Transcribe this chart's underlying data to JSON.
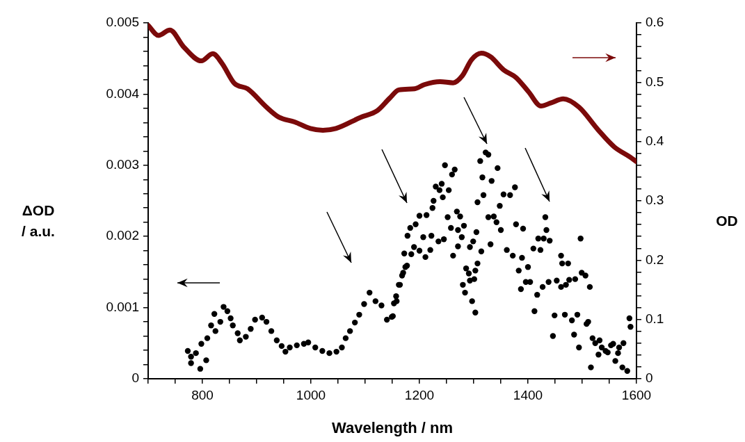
{
  "chart_data": {
    "type": "scatter",
    "xlabel": "Wavelength / nm",
    "ylabel": "ΔOD / a.u.",
    "y2label": "OD",
    "xlim": [
      700,
      1600
    ],
    "xticks": [
      {
        "value": 700,
        "label": null
      },
      {
        "value": 750,
        "label": null
      },
      800,
      {
        "value": 850,
        "label": null
      },
      {
        "value": 900,
        "label": null
      },
      {
        "value": 950,
        "label": null
      },
      1000,
      {
        "value": 1050,
        "label": null
      },
      {
        "value": 1100,
        "label": null
      },
      {
        "value": 1150,
        "label": null
      },
      1200,
      {
        "value": 1250,
        "label": null
      },
      {
        "value": 1300,
        "label": null
      },
      {
        "value": 1350,
        "label": null
      },
      1400,
      {
        "value": 1450,
        "label": null
      },
      {
        "value": 1500,
        "label": null
      },
      {
        "value": 1550,
        "label": null
      },
      1600
    ],
    "ylim": [
      0,
      0.005
    ],
    "yticks": [
      0,
      {
        "value": 0.0002,
        "label": null
      },
      {
        "value": 0.0004,
        "label": null
      },
      {
        "value": 0.0006,
        "label": null
      },
      {
        "value": 0.0008,
        "label": null
      },
      0.001,
      {
        "value": 0.0012,
        "label": null
      },
      {
        "value": 0.0014,
        "label": null
      },
      {
        "value": 0.0016,
        "label": null
      },
      {
        "value": 0.0018,
        "label": null
      },
      0.002,
      {
        "value": 0.0022,
        "label": null
      },
      {
        "value": 0.0024,
        "label": null
      },
      {
        "value": 0.0026,
        "label": null
      },
      {
        "value": 0.0028,
        "label": null
      },
      0.003,
      {
        "value": 0.0032,
        "label": null
      },
      {
        "value": 0.0034,
        "label": null
      },
      {
        "value": 0.0036,
        "label": null
      },
      {
        "value": 0.0038,
        "label": null
      },
      0.004,
      {
        "value": 0.0042,
        "label": null
      },
      {
        "value": 0.0044,
        "label": null
      },
      {
        "value": 0.0046,
        "label": null
      },
      {
        "value": 0.0048,
        "label": null
      },
      0.005
    ],
    "y2lim": [
      0,
      0.6
    ],
    "y2ticks": [
      0,
      {
        "value": 0.02,
        "label": null
      },
      {
        "value": 0.04,
        "label": null
      },
      {
        "value": 0.06,
        "label": null
      },
      {
        "value": 0.08,
        "label": null
      },
      0.1,
      {
        "value": 0.12,
        "label": null
      },
      {
        "value": 0.14,
        "label": null
      },
      {
        "value": 0.16,
        "label": null
      },
      {
        "value": 0.18,
        "label": null
      },
      0.2,
      {
        "value": 0.22,
        "label": null
      },
      {
        "value": 0.24,
        "label": null
      },
      {
        "value": 0.26,
        "label": null
      },
      {
        "value": 0.28,
        "label": null
      },
      0.3,
      {
        "value": 0.32,
        "label": null
      },
      {
        "value": 0.34,
        "label": null
      },
      {
        "value": 0.36,
        "label": null
      },
      {
        "value": 0.38,
        "label": null
      },
      0.4,
      {
        "value": 0.42,
        "label": null
      },
      {
        "value": 0.44,
        "label": null
      },
      {
        "value": 0.46,
        "label": null
      },
      {
        "value": 0.48,
        "label": null
      },
      0.5,
      {
        "value": 0.52,
        "label": null
      },
      {
        "value": 0.54,
        "label": null
      },
      {
        "value": 0.56,
        "label": null
      },
      {
        "value": 0.58,
        "label": null
      },
      0.6
    ],
    "grid": false,
    "legend": false,
    "series": [
      {
        "type": "scatter",
        "color": "#000000",
        "marker": "circle",
        "x": [
          773,
          779,
          779,
          796,
          788,
          798,
          809,
          807,
          816,
          824,
          822,
          833,
          839,
          846,
          852,
          856,
          865,
          869,
          880,
          889,
          897,
          910,
          918,
          927,
          937,
          946,
          953,
          961,
          974,
          987,
          995,
          1008,
          1021,
          1034,
          1047,
          1057,
          1064,
          1072,
          1081,
          1089,
          1098,
          1108,
          1119,
          1130,
          1140,
          1151,
          1158,
          1162,
          1170,
          1177,
          1149,
          1153,
          1157,
          1164,
          1168,
          1174,
          1172,
          1185,
          1178,
          1183,
          1190,
          1193,
          1200,
          1200,
          1207,
          1211,
          1213,
          1220,
          1222,
          1224,
          1226,
          1230,
          1235,
          1237,
          1241,
          1243,
          1245,
          1247,
          1252,
          1254,
          1258,
          1260,
          1265,
          1262,
          1269,
          1271,
          1271,
          1275,
          1278,
          1280,
          1282,
          1284,
          1286,
          1291,
          1293,
          1293,
          1297,
          1299,
          1301,
          1303,
          1305,
          1303,
          1307,
          1307,
          1312,
          1314,
          1316,
          1318,
          1322,
          1327,
          1327,
          1331,
          1333,
          1337,
          1342,
          1344,
          1348,
          1350,
          1355,
          1361,
          1367,
          1372,
          1376,
          1378,
          1383,
          1387,
          1389,
          1391,
          1396,
          1400,
          1404,
          1410,
          1412,
          1417,
          1419,
          1423,
          1427,
          1429,
          1432,
          1434,
          1438,
          1440,
          1446,
          1449,
          1453,
          1461,
          1461,
          1463,
          1468,
          1470,
          1474,
          1476,
          1481,
          1485,
          1487,
          1491,
          1494,
          1497,
          1499,
          1506,
          1508,
          1511,
          1514,
          1516,
          1519,
          1524,
          1530,
          1532,
          1536,
          1543,
          1547,
          1553,
          1557,
          1561,
          1566,
          1568,
          1574,
          1576,
          1583,
          1587,
          1589
        ],
        "values": [
          0.00039,
          0.00031,
          0.00022,
          0.00014,
          0.00036,
          0.00049,
          0.00057,
          0.00026,
          0.00075,
          0.00067,
          0.00091,
          0.0008,
          0.00101,
          0.00095,
          0.00085,
          0.00075,
          0.00064,
          0.00054,
          0.00059,
          0.0007,
          0.00083,
          0.00086,
          0.0008,
          0.00067,
          0.00054,
          0.00046,
          0.00038,
          0.00044,
          0.00047,
          0.00049,
          0.00051,
          0.00044,
          0.00039,
          0.00036,
          0.00038,
          0.00044,
          0.00057,
          0.00067,
          0.00079,
          0.0009,
          0.00105,
          0.00121,
          0.00109,
          0.00103,
          0.00083,
          0.00088,
          0.00109,
          0.00132,
          0.00149,
          0.00159,
          0.00087,
          0.00106,
          0.00116,
          0.00132,
          0.00145,
          0.00157,
          0.00176,
          0.00175,
          0.00201,
          0.00212,
          0.00185,
          0.00217,
          0.0018,
          0.00229,
          0.00199,
          0.00171,
          0.0023,
          0.00181,
          0.00201,
          0.0024,
          0.0025,
          0.0027,
          0.00193,
          0.00265,
          0.00274,
          0.00255,
          0.00196,
          0.003,
          0.00227,
          0.00265,
          0.00212,
          0.00287,
          0.00294,
          0.00173,
          0.00235,
          0.00209,
          0.00186,
          0.00228,
          0.00199,
          0.00132,
          0.00215,
          0.00121,
          0.00155,
          0.00148,
          0.00138,
          0.00185,
          0.00109,
          0.00193,
          0.0014,
          0.00093,
          0.00206,
          0.00152,
          0.00162,
          0.00248,
          0.00306,
          0.00179,
          0.00283,
          0.00258,
          0.00318,
          0.00315,
          0.00227,
          0.00189,
          0.00278,
          0.00228,
          0.0022,
          0.00296,
          0.00243,
          0.00209,
          0.00259,
          0.00181,
          0.00258,
          0.00173,
          0.00269,
          0.00217,
          0.00152,
          0.00126,
          0.0017,
          0.00211,
          0.00136,
          0.00157,
          0.00136,
          0.00183,
          0.00095,
          0.00118,
          0.00197,
          0.00181,
          0.00129,
          0.00197,
          0.00227,
          0.00209,
          0.00136,
          0.00194,
          0.0006,
          0.00089,
          0.00138,
          0.00173,
          0.00129,
          0.00162,
          0.0009,
          0.00132,
          0.00162,
          0.00139,
          0.00082,
          0.00062,
          0.0014,
          0.0009,
          0.00044,
          0.00197,
          0.00149,
          0.00145,
          0.00077,
          0.0008,
          0.00129,
          0.00016,
          0.00057,
          0.0005,
          0.00034,
          0.00054,
          0.00044,
          0.00039,
          0.00037,
          0.00047,
          0.00049,
          0.00025,
          0.00036,
          0.00044,
          0.00016,
          0.0005,
          0.00011,
          0.00085,
          0.00073
        ]
      },
      {
        "type": "line",
        "axis": "y2",
        "color": "#7b0a0a",
        "marker": "none",
        "line_style": "solid",
        "x": [
          700,
          719,
          740,
          766,
          798,
          819,
          836,
          859,
          883,
          918,
          941,
          970,
          999,
          1022,
          1046,
          1092,
          1122,
          1145,
          1162,
          1191,
          1209,
          1238,
          1262,
          1279,
          1296,
          1314,
          1331,
          1355,
          1378,
          1401,
          1424,
          1442,
          1465,
          1494,
          1529,
          1559,
          1588,
          1600
        ],
        "values": [
          0.596,
          0.579,
          0.588,
          0.559,
          0.536,
          0.548,
          0.532,
          0.498,
          0.489,
          0.458,
          0.441,
          0.433,
          0.422,
          0.419,
          0.422,
          0.441,
          0.452,
          0.473,
          0.487,
          0.489,
          0.496,
          0.501,
          0.499,
          0.511,
          0.538,
          0.549,
          0.543,
          0.521,
          0.508,
          0.484,
          0.46,
          0.465,
          0.472,
          0.458,
          0.42,
          0.391,
          0.374,
          0.366
        ]
      }
    ]
  }
}
